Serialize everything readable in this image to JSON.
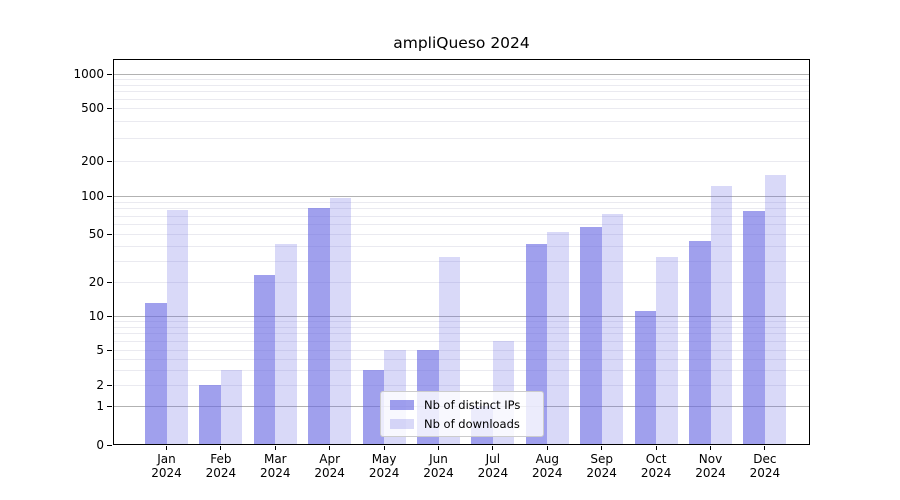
{
  "chart_data": {
    "type": "bar",
    "title": "ampliQueso 2024",
    "year": "2024",
    "categories": [
      "Jan",
      "Feb",
      "Mar",
      "Apr",
      "May",
      "Jun",
      "Jul",
      "Aug",
      "Sep",
      "Oct",
      "Nov",
      "Dec"
    ],
    "series": [
      {
        "name": "Nb of distinct IPs",
        "color": "rgba(102,102,226,0.62)",
        "color_hex_on_white": "#a6a6ec",
        "values": [
          13,
          2,
          23,
          80,
          3,
          5,
          1,
          41,
          57,
          11,
          44,
          76
        ]
      },
      {
        "name": "Nb of downloads",
        "color": "rgba(102,102,226,0.25)",
        "color_hex_on_white": "#dcdcf8",
        "values": [
          78,
          3,
          41,
          96,
          5,
          32,
          6,
          52,
          72,
          32,
          121,
          151
        ]
      }
    ],
    "xlabel": "",
    "ylabel": "",
    "yscale": "symlog",
    "ylim": [
      0,
      1000
    ],
    "yticks": [
      0,
      1,
      2,
      5,
      10,
      20,
      50,
      100,
      200,
      500,
      1000
    ],
    "grid": true,
    "legend": {
      "entries": [
        "Nb of distinct IPs",
        "Nb of downloads"
      ],
      "position": "inside-bottom-center"
    },
    "colors": {
      "bar_base": "#6666e2",
      "grid_major": "#b2b2b2",
      "grid_minor": "#eaeaf0",
      "axis": "#000000",
      "background": "#ffffff"
    }
  }
}
